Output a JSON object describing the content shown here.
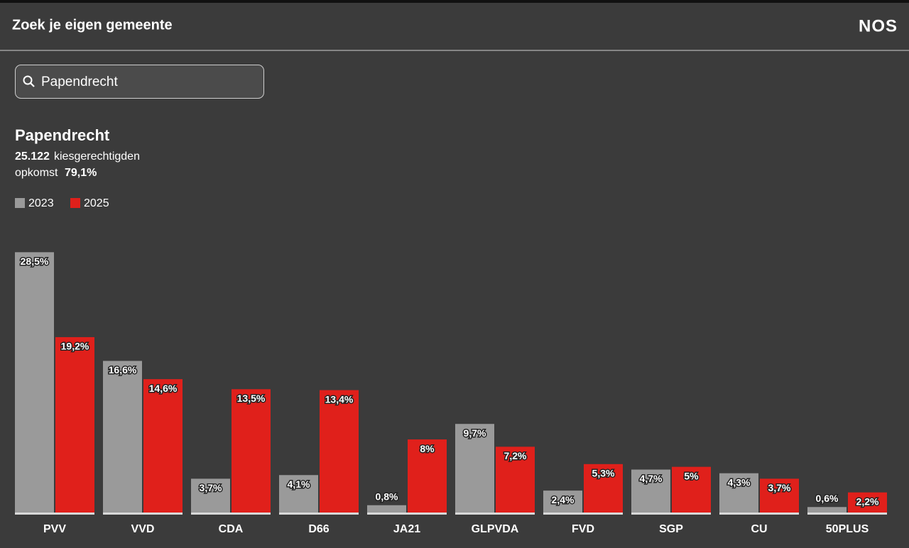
{
  "header": {
    "title": "Zoek je eigen gemeente",
    "logo": "NOS"
  },
  "search": {
    "value": "Papendrecht"
  },
  "info": {
    "name": "Papendrecht",
    "voters": "25.122",
    "voters_label": "kiesgerechtigden",
    "turnout_label": "opkomst",
    "turnout": "79,1%"
  },
  "chart_data": {
    "type": "bar",
    "categories": [
      "PVV",
      "VVD",
      "CDA",
      "D66",
      "JA21",
      "GLPVDA",
      "FVD",
      "SGP",
      "CU",
      "50PLUS"
    ],
    "ylim": [
      0,
      30
    ],
    "series": [
      {
        "name": "2023",
        "color": "#9a9a9a",
        "values": [
          28.5,
          16.6,
          3.7,
          4.1,
          0.8,
          9.7,
          2.4,
          4.7,
          4.3,
          0.6
        ],
        "value_labels": [
          "28,5%",
          "16,6%",
          "3,7%",
          "4,1%",
          "0,8%",
          "9,7%",
          "2,4%",
          "4,7%",
          "4,3%",
          "0,6%"
        ]
      },
      {
        "name": "2025",
        "color": "#e0201b",
        "values": [
          19.2,
          14.6,
          13.5,
          13.4,
          8,
          7.2,
          5.3,
          5,
          3.7,
          2.2
        ],
        "value_labels": [
          "19,2%",
          "14,6%",
          "13,5%",
          "13,4%",
          "8%",
          "7,2%",
          "5,3%",
          "5%",
          "3,7%",
          "2,2%"
        ]
      }
    ]
  }
}
